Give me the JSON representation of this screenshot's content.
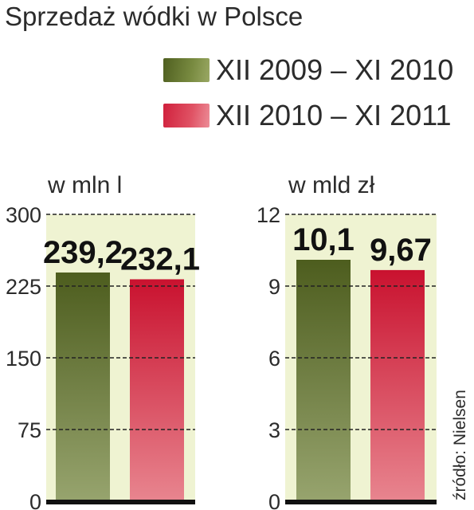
{
  "title": "Sprzedaż wódki w Polsce",
  "source": "źródło: Nielsen",
  "legend": [
    {
      "label": "XII 2009 – XI 2010",
      "color": "#5a6b2c"
    },
    {
      "label": "XII 2010 – XI 2011",
      "color": "#d4213d"
    }
  ],
  "chart_data": [
    {
      "type": "bar",
      "unit_label": "w mln l",
      "categories": [
        "XII 2009 – XI 2010",
        "XII 2010 – XI 2011"
      ],
      "values": [
        239.2,
        232.1
      ],
      "value_labels": [
        "239,2",
        "232,1"
      ],
      "ylim": [
        0,
        300
      ],
      "yticks": [
        0,
        75,
        150,
        225,
        300
      ],
      "ytick_labels": [
        "0",
        "75",
        "150",
        "225",
        "300"
      ],
      "grid": true
    },
    {
      "type": "bar",
      "unit_label": "w mld zł",
      "categories": [
        "XII 2009 – XI 2010",
        "XII 2010 – XI 2011"
      ],
      "values": [
        10.1,
        9.67
      ],
      "value_labels": [
        "10,1",
        "9,67"
      ],
      "ylim": [
        0,
        12
      ],
      "yticks": [
        0,
        3,
        6,
        9,
        12
      ],
      "ytick_labels": [
        "0",
        "3",
        "6",
        "9",
        "12"
      ],
      "grid": true
    }
  ]
}
